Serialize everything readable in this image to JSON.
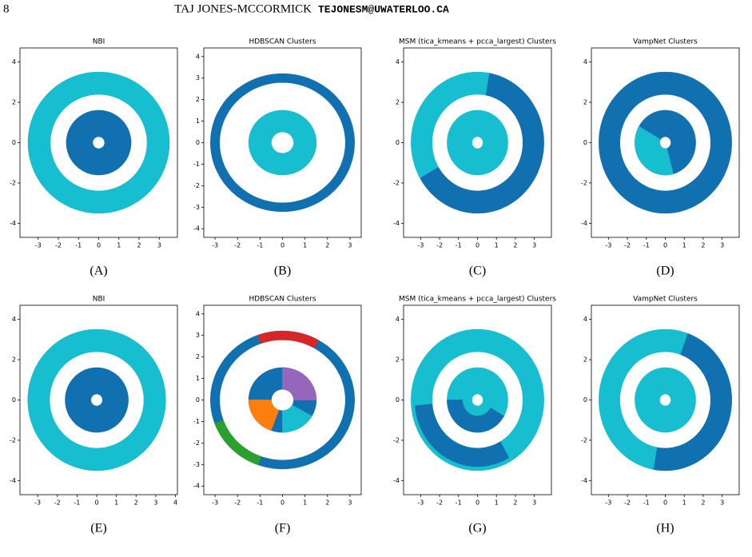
{
  "header": {
    "page_number": "8",
    "author": "TAJ JONES-MCCORMICK",
    "email": "TEJONESM@UWATERLOO.CA"
  },
  "chart_data": [
    {
      "type": "scatter",
      "title": "NBI",
      "caption": "(A)",
      "xlim": [
        -3.9,
        3.9
      ],
      "ylim": [
        -4.7,
        4.7
      ],
      "xticks": [
        -3,
        -2,
        -1,
        0,
        1,
        2,
        3
      ],
      "yticks": [
        -4,
        -2,
        0,
        2,
        4
      ],
      "series": [
        {
          "color": "#17becf",
          "r": [
            2.4,
            3.5
          ],
          "theta": [
            0,
            360
          ]
        },
        {
          "color": "#1170b0",
          "r": [
            0.3,
            1.6
          ],
          "theta": [
            0,
            360
          ]
        }
      ]
    },
    {
      "type": "scatter",
      "title": "HDBSCAN Clusters",
      "caption": "(B)",
      "xlim": [
        -3.5,
        3.5
      ],
      "ylim": [
        -4.4,
        4.4
      ],
      "xticks": [
        -3,
        -2,
        -1,
        0,
        1,
        2,
        3
      ],
      "yticks": [
        -4,
        -3,
        -2,
        -1,
        0,
        1,
        2,
        3,
        4
      ],
      "series": [
        {
          "color": "#1170b0",
          "r": [
            2.8,
            3.2
          ],
          "theta": [
            0,
            360
          ]
        },
        {
          "color": "#17becf",
          "r": [
            0.5,
            1.5
          ],
          "theta": [
            0,
            360
          ]
        }
      ]
    },
    {
      "type": "scatter",
      "title": "MSM (tica_kmeans + pcca_largest) Clusters",
      "caption": "(C)",
      "xlim": [
        -3.9,
        3.9
      ],
      "ylim": [
        -4.7,
        4.7
      ],
      "xticks": [
        -3,
        -2,
        -1,
        0,
        1,
        2,
        3
      ],
      "yticks": [
        -4,
        -2,
        0,
        2,
        4
      ],
      "series": [
        {
          "color": "#1170b0",
          "r": [
            2.4,
            3.5
          ],
          "theta": [
            -150,
            80
          ]
        },
        {
          "color": "#17becf",
          "r": [
            2.4,
            3.5
          ],
          "theta": [
            80,
            210
          ]
        },
        {
          "color": "#17becf",
          "r": [
            0.3,
            1.6
          ],
          "theta": [
            0,
            360
          ]
        }
      ]
    },
    {
      "type": "scatter",
      "title": "VampNet Clusters",
      "caption": "(D)",
      "xlim": [
        -3.9,
        3.9
      ],
      "ylim": [
        -4.7,
        4.7
      ],
      "xticks": [
        -3,
        -2,
        -1,
        0,
        1,
        2,
        3
      ],
      "yticks": [
        -4,
        -2,
        0,
        2,
        4
      ],
      "series": [
        {
          "color": "#1170b0",
          "r": [
            2.4,
            3.5
          ],
          "theta": [
            0,
            360
          ]
        },
        {
          "color": "#1170b0",
          "r": [
            0.3,
            1.6
          ],
          "theta": [
            0,
            360
          ]
        },
        {
          "color": "#17becf",
          "r": [
            0.3,
            1.6
          ],
          "theta": [
            150,
            285
          ]
        }
      ]
    },
    {
      "type": "scatter",
      "title": "NBI",
      "caption": "(E)",
      "xlim": [
        -3.9,
        4.1
      ],
      "ylim": [
        -4.7,
        4.7
      ],
      "xticks": [
        -3,
        -2,
        -1,
        0,
        1,
        2,
        3,
        4
      ],
      "yticks": [
        -4,
        -2,
        0,
        2,
        4
      ],
      "series": [
        {
          "color": "#17becf",
          "r": [
            2.4,
            3.5
          ],
          "theta": [
            0,
            360
          ]
        },
        {
          "color": "#1170b0",
          "r": [
            0.3,
            1.6
          ],
          "theta": [
            0,
            360
          ]
        }
      ]
    },
    {
      "type": "scatter",
      "title": "HDBSCAN Clusters",
      "caption": "(F)",
      "xlim": [
        -3.5,
        3.5
      ],
      "ylim": [
        -4.4,
        4.4
      ],
      "xticks": [
        -3,
        -2,
        -1,
        0,
        1,
        2,
        3
      ],
      "yticks": [
        -4,
        -3,
        -2,
        -1,
        0,
        1,
        2,
        3,
        4
      ],
      "series": [
        {
          "color": "#1170b0",
          "r": [
            2.8,
            3.2
          ],
          "theta": [
            0,
            360
          ]
        },
        {
          "color": "#d62728",
          "r": [
            2.8,
            3.2
          ],
          "theta": [
            60,
            110
          ]
        },
        {
          "color": "#2ca02c",
          "r": [
            2.8,
            3.2
          ],
          "theta": [
            200,
            250
          ]
        },
        {
          "color": "#1170b0",
          "r": [
            0.5,
            1.5
          ],
          "theta": [
            0,
            360
          ]
        },
        {
          "color": "#9467bd",
          "r": [
            0.5,
            1.5
          ],
          "theta": [
            0,
            90
          ]
        },
        {
          "color": "#ff7f0e",
          "r": [
            0.5,
            1.5
          ],
          "theta": [
            180,
            250
          ]
        },
        {
          "color": "#17becf",
          "r": [
            0.5,
            1.5
          ],
          "theta": [
            270,
            330
          ]
        }
      ]
    },
    {
      "type": "scatter",
      "title": "MSM (tica_kmeans + pcca_largest) Clusters",
      "caption": "(G)",
      "xlim": [
        -3.9,
        3.9
      ],
      "ylim": [
        -4.7,
        4.7
      ],
      "xticks": [
        -3,
        -2,
        -1,
        0,
        1,
        2,
        3
      ],
      "yticks": [
        -4,
        -2,
        0,
        2,
        4
      ],
      "series": [
        {
          "color": "#17becf",
          "r": [
            2.4,
            3.5
          ],
          "theta": [
            0,
            360
          ]
        },
        {
          "color": "#1170b0",
          "r": [
            2.4,
            3.3
          ],
          "theta": [
            185,
            300
          ]
        },
        {
          "color": "#17becf",
          "r": [
            0.3,
            1.6
          ],
          "theta": [
            0,
            360
          ]
        },
        {
          "color": "#1170b0",
          "r": [
            0.8,
            1.6
          ],
          "theta": [
            180,
            330
          ]
        }
      ]
    },
    {
      "type": "scatter",
      "title": "VampNet Clusters",
      "caption": "(H)",
      "xlim": [
        -3.9,
        3.9
      ],
      "ylim": [
        -4.7,
        4.7
      ],
      "xticks": [
        -3,
        -2,
        -1,
        0,
        1,
        2,
        3
      ],
      "yticks": [
        -4,
        -2,
        0,
        2,
        4
      ],
      "series": [
        {
          "color": "#17becf",
          "r": [
            2.4,
            3.5
          ],
          "theta": [
            0,
            360
          ]
        },
        {
          "color": "#1170b0",
          "r": [
            2.4,
            3.5
          ],
          "theta": [
            -100,
            70
          ]
        },
        {
          "color": "#17becf",
          "r": [
            0.3,
            1.6
          ],
          "theta": [
            0,
            360
          ]
        }
      ]
    }
  ]
}
